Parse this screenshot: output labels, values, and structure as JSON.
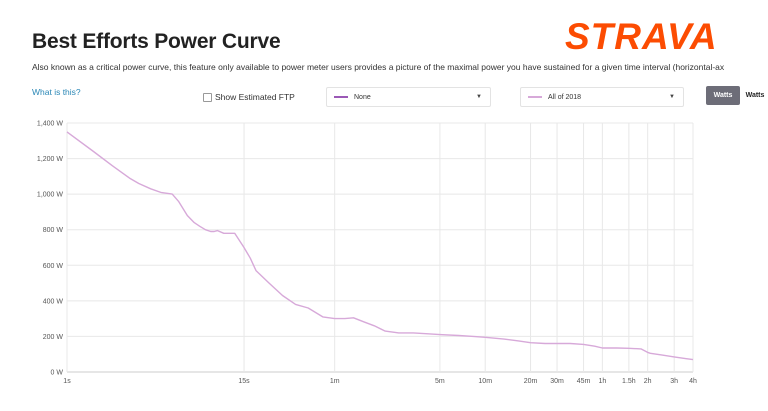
{
  "page": {
    "title": "Best Efforts Power Curve",
    "brand": "STRAVA",
    "description": "Also known as a critical power curve, this feature only available to power meter users provides a picture of the maximal power you have sustained for a given time interval (horizontal-ax",
    "help_link": "What is this?"
  },
  "controls": {
    "show_estimated_ftp": {
      "label": "Show Estimated FTP",
      "checked": false
    },
    "compare_select": {
      "value": "None",
      "swatch_color": "#9b59b6"
    },
    "period_select": {
      "value": "All of 2018",
      "swatch_color": "#d7a9d9"
    },
    "unit_toggle": {
      "active": "Watts",
      "inactive": "Watts"
    }
  },
  "colors": {
    "accent": "#fc4c02",
    "line": "#d7a9d9",
    "grid": "#e8e8e8",
    "link": "#2a87b6"
  },
  "chart_data": {
    "type": "line",
    "title": "Best Efforts Power Curve",
    "xlabel": "",
    "ylabel": "",
    "x_scale": "log",
    "x_unit": "seconds",
    "ylim": [
      0,
      1400
    ],
    "grid": true,
    "y_ticks": [
      {
        "value": 0,
        "label": "0 W"
      },
      {
        "value": 200,
        "label": "200 W"
      },
      {
        "value": 400,
        "label": "400 W"
      },
      {
        "value": 600,
        "label": "600 W"
      },
      {
        "value": 800,
        "label": "800 W"
      },
      {
        "value": 1000,
        "label": "1,000 W"
      },
      {
        "value": 1200,
        "label": "1,200 W"
      },
      {
        "value": 1400,
        "label": "1,400 W"
      }
    ],
    "x_ticks": [
      {
        "value": 1,
        "label": "1s"
      },
      {
        "value": 15,
        "label": "15s"
      },
      {
        "value": 60,
        "label": "1m"
      },
      {
        "value": 300,
        "label": "5m"
      },
      {
        "value": 600,
        "label": "10m"
      },
      {
        "value": 1200,
        "label": "20m"
      },
      {
        "value": 1800,
        "label": "30m"
      },
      {
        "value": 2700,
        "label": "45m"
      },
      {
        "value": 3600,
        "label": "1h"
      },
      {
        "value": 5400,
        "label": "1.5h"
      },
      {
        "value": 7200,
        "label": "2h"
      },
      {
        "value": 10800,
        "label": "3h"
      },
      {
        "value": 14400,
        "label": "4h"
      }
    ],
    "series": [
      {
        "color": "#d7a9d9",
        "x": [
          1,
          1.5,
          2,
          2.6,
          3,
          3.6,
          4.2,
          5,
          5.5,
          6.3,
          7,
          7.6,
          8.3,
          9,
          9.5,
          10,
          11,
          12,
          13,
          15,
          16.5,
          18,
          22,
          27,
          33,
          40,
          50,
          60,
          70,
          80,
          95,
          110,
          130,
          160,
          200,
          250,
          300,
          400,
          500,
          600,
          800,
          1000,
          1200,
          1500,
          1800,
          2200,
          2700,
          3200,
          3600,
          4500,
          5400,
          6500,
          7200,
          7500,
          9000,
          10800,
          13000,
          14400
        ],
        "y": [
          1350,
          1240,
          1160,
          1090,
          1060,
          1030,
          1010,
          1000,
          960,
          880,
          840,
          820,
          800,
          790,
          790,
          795,
          780,
          780,
          780,
          700,
          640,
          570,
          500,
          430,
          380,
          360,
          310,
          300,
          300,
          305,
          280,
          260,
          230,
          220,
          220,
          215,
          210,
          205,
          200,
          195,
          185,
          175,
          165,
          160,
          160,
          160,
          155,
          145,
          135,
          135,
          133,
          130,
          110,
          105,
          95,
          85,
          75,
          70
        ]
      }
    ]
  }
}
